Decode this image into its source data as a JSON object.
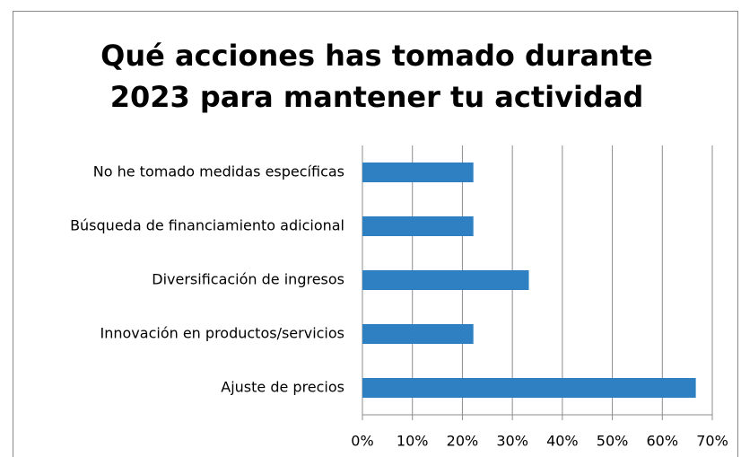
{
  "chart_data": {
    "type": "bar",
    "orientation": "horizontal",
    "title": [
      "Qué acciones has tomado durante",
      "2023 para mantener tu actividad"
    ],
    "categories": [
      "No he tomado medidas específicas",
      "Búsqueda de financiamiento adicional",
      "Diversificación de ingresos",
      "Innovación en productos/servicios",
      "Ajuste de precios"
    ],
    "values": [
      22.2,
      22.2,
      33.3,
      22.2,
      66.7
    ],
    "color": "#2e80c2",
    "xlim": [
      0,
      70
    ],
    "xticks": [
      {
        "value": 0,
        "label": "0%"
      },
      {
        "value": 10,
        "label": "10%"
      },
      {
        "value": 20,
        "label": "20%"
      },
      {
        "value": 30,
        "label": "30%"
      },
      {
        "value": 40,
        "label": "40%"
      },
      {
        "value": 50,
        "label": "50%"
      },
      {
        "value": 60,
        "label": "60%"
      },
      {
        "value": 70,
        "label": "70%"
      }
    ],
    "grid": true
  }
}
